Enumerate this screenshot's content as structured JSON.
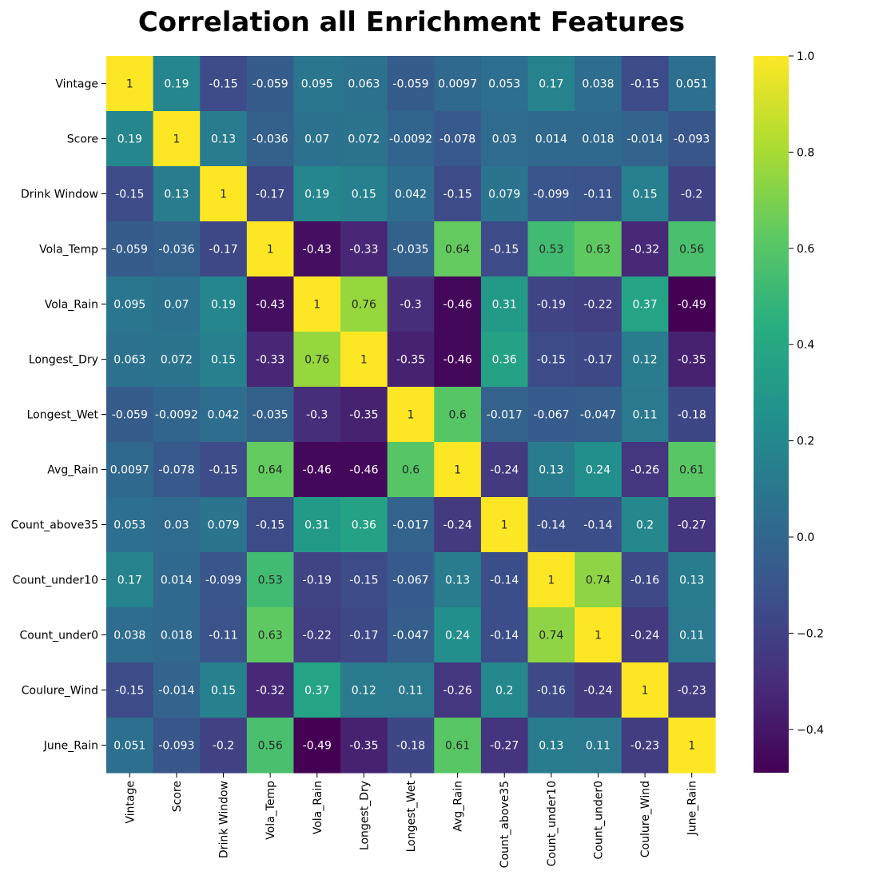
{
  "chart_data": {
    "type": "heatmap",
    "title": "Correlation all Enrichment Features",
    "rows": [
      "Vintage",
      "Score",
      "Drink Window",
      "Vola_Temp",
      "Vola_Rain",
      "Longest_Dry",
      "Longest_Wet",
      "Avg_Rain",
      "Count_above35",
      "Count_under10",
      "Count_under0",
      "Coulure_Wind",
      "June_Rain"
    ],
    "columns": [
      "Vintage",
      "Score",
      "Drink Window",
      "Vola_Temp",
      "Vola_Rain",
      "Longest_Dry",
      "Longest_Wet",
      "Avg_Rain",
      "Count_above35",
      "Count_under10",
      "Count_under0",
      "Coulure_Wind",
      "June_Rain"
    ],
    "values": [
      [
        "1",
        "0.19",
        "-0.15",
        "-0.059",
        "0.095",
        "0.063",
        "-0.059",
        "0.0097",
        "0.053",
        "0.17",
        "0.038",
        "-0.15",
        "0.051"
      ],
      [
        "0.19",
        "1",
        "0.13",
        "-0.036",
        "0.07",
        "0.072",
        "-0.0092",
        "-0.078",
        "0.03",
        "0.014",
        "0.018",
        "-0.014",
        "-0.093"
      ],
      [
        "-0.15",
        "0.13",
        "1",
        "-0.17",
        "0.19",
        "0.15",
        "0.042",
        "-0.15",
        "0.079",
        "-0.099",
        "-0.11",
        "0.15",
        "-0.2"
      ],
      [
        "-0.059",
        "-0.036",
        "-0.17",
        "1",
        "-0.43",
        "-0.33",
        "-0.035",
        "0.64",
        "-0.15",
        "0.53",
        "0.63",
        "-0.32",
        "0.56"
      ],
      [
        "0.095",
        "0.07",
        "0.19",
        "-0.43",
        "1",
        "0.76",
        "-0.3",
        "-0.46",
        "0.31",
        "-0.19",
        "-0.22",
        "0.37",
        "-0.49"
      ],
      [
        "0.063",
        "0.072",
        "0.15",
        "-0.33",
        "0.76",
        "1",
        "-0.35",
        "-0.46",
        "0.36",
        "-0.15",
        "-0.17",
        "0.12",
        "-0.35"
      ],
      [
        "-0.059",
        "-0.0092",
        "0.042",
        "-0.035",
        "-0.3",
        "-0.35",
        "1",
        "0.6",
        "-0.017",
        "-0.067",
        "-0.047",
        "0.11",
        "-0.18"
      ],
      [
        "0.0097",
        "-0.078",
        "-0.15",
        "0.64",
        "-0.46",
        "-0.46",
        "0.6",
        "1",
        "-0.24",
        "0.13",
        "0.24",
        "-0.26",
        "0.61"
      ],
      [
        "0.053",
        "0.03",
        "0.079",
        "-0.15",
        "0.31",
        "0.36",
        "-0.017",
        "-0.24",
        "1",
        "-0.14",
        "-0.14",
        "0.2",
        "-0.27"
      ],
      [
        "0.17",
        "0.014",
        "-0.099",
        "0.53",
        "-0.19",
        "-0.15",
        "-0.067",
        "0.13",
        "-0.14",
        "1",
        "0.74",
        "-0.16",
        "0.13"
      ],
      [
        "0.038",
        "0.018",
        "-0.11",
        "0.63",
        "-0.22",
        "-0.17",
        "-0.047",
        "0.24",
        "-0.14",
        "0.74",
        "1",
        "-0.24",
        "0.11"
      ],
      [
        "-0.15",
        "-0.014",
        "0.15",
        "-0.32",
        "0.37",
        "0.12",
        "0.11",
        "-0.26",
        "0.2",
        "-0.16",
        "-0.24",
        "1",
        "-0.23"
      ],
      [
        "0.051",
        "-0.093",
        "-0.2",
        "0.56",
        "-0.49",
        "-0.35",
        "-0.18",
        "0.61",
        "-0.27",
        "0.13",
        "0.11",
        "-0.23",
        "1"
      ]
    ],
    "colormap": "viridis",
    "colorbar": {
      "min": -0.49,
      "max": 1.0,
      "ticks": [
        "−0.4",
        "−0.2",
        "0.0",
        "0.2",
        "0.4",
        "0.6",
        "0.8",
        "1.0"
      ]
    }
  }
}
